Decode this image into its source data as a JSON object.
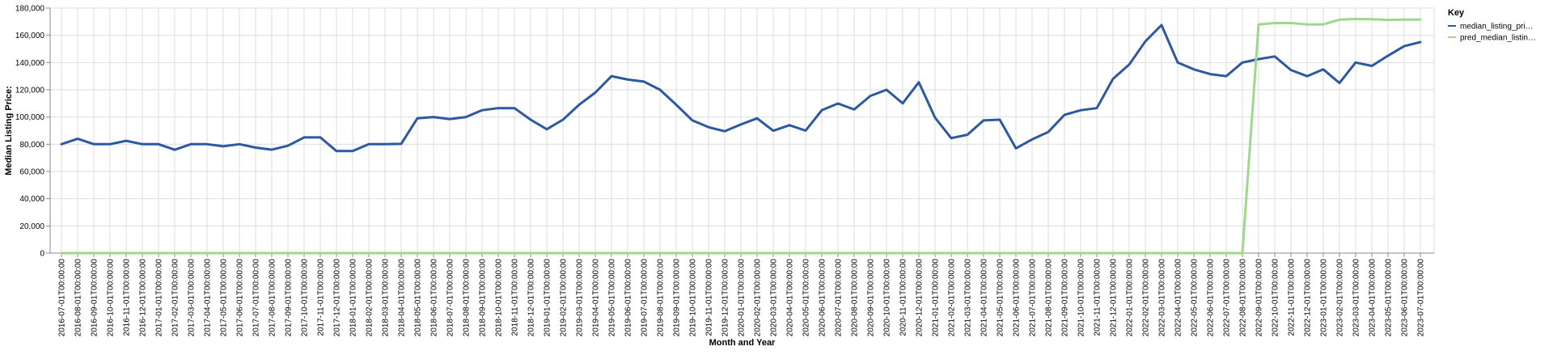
{
  "chart_data": {
    "type": "line",
    "xlabel": "Month and Year",
    "ylabel": "Median Listing Price:",
    "ylim": [
      0,
      180000
    ],
    "yticks": [
      0,
      20000,
      40000,
      60000,
      80000,
      100000,
      120000,
      140000,
      160000,
      180000
    ],
    "ytick_labels": [
      "0",
      "20,000",
      "40,000",
      "60,000",
      "80,000",
      "100,000",
      "120,000",
      "140,000",
      "160,000",
      "180,000"
    ],
    "grid": true,
    "legend": {
      "title": "Key",
      "position": "right"
    },
    "colors": [
      "#2c59a0",
      "#9ed88d"
    ],
    "categories": [
      "2016-07-01T00:00:00",
      "2016-08-01T00:00:00",
      "2016-09-01T00:00:00",
      "2016-10-01T00:00:00",
      "2016-11-01T00:00:00",
      "2016-12-01T00:00:00",
      "2017-01-01T00:00:00",
      "2017-02-01T00:00:00",
      "2017-03-01T00:00:00",
      "2017-04-01T00:00:00",
      "2017-05-01T00:00:00",
      "2017-06-01T00:00:00",
      "2017-07-01T00:00:00",
      "2017-08-01T00:00:00",
      "2017-09-01T00:00:00",
      "2017-10-01T00:00:00",
      "2017-11-01T00:00:00",
      "2017-12-01T00:00:00",
      "2018-01-01T00:00:00",
      "2018-02-01T00:00:00",
      "2018-03-01T00:00:00",
      "2018-04-01T00:00:00",
      "2018-05-01T00:00:00",
      "2018-06-01T00:00:00",
      "2018-07-01T00:00:00",
      "2018-08-01T00:00:00",
      "2018-09-01T00:00:00",
      "2018-10-01T00:00:00",
      "2018-11-01T00:00:00",
      "2018-12-01T00:00:00",
      "2019-01-01T00:00:00",
      "2019-02-01T00:00:00",
      "2019-03-01T00:00:00",
      "2019-04-01T00:00:00",
      "2019-05-01T00:00:00",
      "2019-06-01T00:00:00",
      "2019-07-01T00:00:00",
      "2019-08-01T00:00:00",
      "2019-09-01T00:00:00",
      "2019-10-01T00:00:00",
      "2019-11-01T00:00:00",
      "2019-12-01T00:00:00",
      "2020-01-01T00:00:00",
      "2020-02-01T00:00:00",
      "2020-03-01T00:00:00",
      "2020-04-01T00:00:00",
      "2020-05-01T00:00:00",
      "2020-06-01T00:00:00",
      "2020-07-01T00:00:00",
      "2020-08-01T00:00:00",
      "2020-09-01T00:00:00",
      "2020-10-01T00:00:00",
      "2020-11-01T00:00:00",
      "2020-12-01T00:00:00",
      "2021-01-01T00:00:00",
      "2021-02-01T00:00:00",
      "2021-03-01T00:00:00",
      "2021-04-01T00:00:00",
      "2021-05-01T00:00:00",
      "2021-06-01T00:00:00",
      "2021-07-01T00:00:00",
      "2021-08-01T00:00:00",
      "2021-09-01T00:00:00",
      "2021-10-01T00:00:00",
      "2021-11-01T00:00:00",
      "2021-12-01T00:00:00",
      "2022-01-01T00:00:00",
      "2022-02-01T00:00:00",
      "2022-03-01T00:00:00",
      "2022-04-01T00:00:00",
      "2022-05-01T00:00:00",
      "2022-06-01T00:00:00",
      "2022-07-01T00:00:00",
      "2022-08-01T00:00:00",
      "2022-09-01T00:00:00",
      "2022-10-01T00:00:00",
      "2022-11-01T00:00:00",
      "2022-12-01T00:00:00",
      "2023-01-01T00:00:00",
      "2023-02-01T00:00:00",
      "2023-03-01T00:00:00",
      "2023-04-01T00:00:00",
      "2023-05-01T00:00:00",
      "2023-06-01T00:00:00",
      "2023-07-01T00:00:00"
    ],
    "series": [
      {
        "name": "median_listing_pri…",
        "values": [
          80000,
          84000,
          80000,
          80000,
          82500,
          80000,
          80000,
          75900,
          80000,
          80000,
          78500,
          80000,
          77500,
          76000,
          78900,
          85000,
          85000,
          75000,
          75000,
          80000,
          80000,
          80250,
          99000,
          100000,
          98500,
          100000,
          105000,
          106500,
          106500,
          98000,
          91000,
          98000,
          109000,
          117900,
          130000,
          127500,
          126000,
          120000,
          109000,
          97500,
          92500,
          89500,
          94500,
          99000,
          89900,
          94000,
          90000,
          105000,
          109900,
          105500,
          115500,
          120000,
          110000,
          125500,
          99500,
          84500,
          87000,
          97500,
          98000,
          77000,
          83500,
          89000,
          101500,
          105000,
          106500,
          128000,
          138500,
          155500,
          167500,
          140000,
          135000,
          131500,
          130000,
          140000,
          142500,
          144500,
          134500,
          130000,
          135000,
          125000,
          140000,
          137500,
          145000,
          152000,
          155000
        ]
      },
      {
        "name": "pred_median_listin…",
        "values": [
          0,
          0,
          0,
          0,
          0,
          0,
          0,
          0,
          0,
          0,
          0,
          0,
          0,
          0,
          0,
          0,
          0,
          0,
          0,
          0,
          0,
          0,
          0,
          0,
          0,
          0,
          0,
          0,
          0,
          0,
          0,
          0,
          0,
          0,
          0,
          0,
          0,
          0,
          0,
          0,
          0,
          0,
          0,
          0,
          0,
          0,
          0,
          0,
          0,
          0,
          0,
          0,
          0,
          0,
          0,
          0,
          0,
          0,
          0,
          0,
          0,
          0,
          0,
          0,
          0,
          0,
          0,
          0,
          0,
          0,
          0,
          0,
          0,
          0,
          168000,
          169000,
          169000,
          168000,
          168000,
          171500,
          172000,
          171800,
          171300,
          171500,
          171500
        ]
      }
    ]
  }
}
